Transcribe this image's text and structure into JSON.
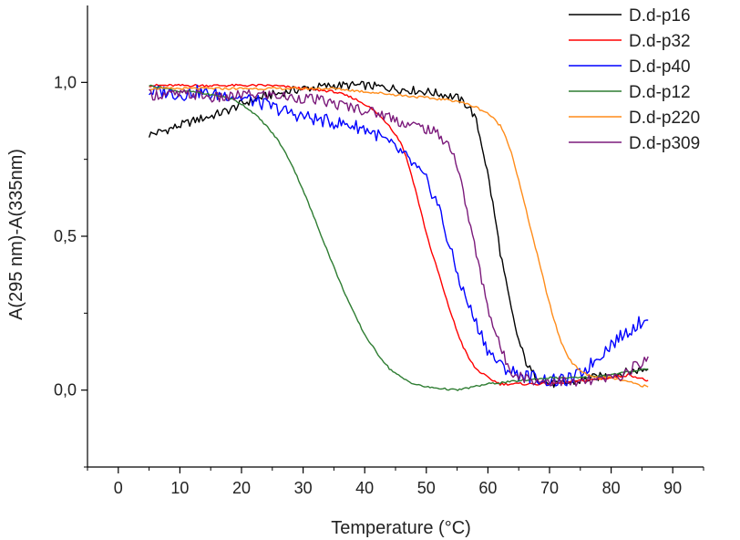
{
  "chart_data": {
    "type": "line",
    "title": "",
    "xlabel": "Temperature (°C)",
    "ylabel": "A(295 nm)-A(335nm)",
    "xlim": [
      -5,
      95
    ],
    "ylim": [
      -0.25,
      1.25
    ],
    "xticks": [
      0,
      10,
      20,
      30,
      40,
      50,
      60,
      70,
      80,
      90
    ],
    "xtick_labels": [
      "0",
      "10",
      "20",
      "30",
      "40",
      "50",
      "60",
      "70",
      "80",
      "90"
    ],
    "yticks": [
      0.0,
      0.5,
      1.0
    ],
    "ytick_labels": [
      "0,0",
      "0,5",
      "1,0"
    ],
    "grid": false,
    "legend_position": "top-right",
    "series": [
      {
        "name": "D.d-p16",
        "color": "#000000",
        "points": [
          [
            5,
            0.83
          ],
          [
            7,
            0.84
          ],
          [
            10,
            0.86
          ],
          [
            13,
            0.88
          ],
          [
            15,
            0.89
          ],
          [
            18,
            0.91
          ],
          [
            20,
            0.93
          ],
          [
            23,
            0.95
          ],
          [
            25,
            0.96
          ],
          [
            30,
            0.98
          ],
          [
            35,
            0.99
          ],
          [
            40,
            0.99
          ],
          [
            45,
            0.98
          ],
          [
            50,
            0.97
          ],
          [
            53,
            0.96
          ],
          [
            55,
            0.95
          ],
          [
            57,
            0.92
          ],
          [
            58,
            0.88
          ],
          [
            59,
            0.8
          ],
          [
            60,
            0.7
          ],
          [
            61,
            0.58
          ],
          [
            62,
            0.45
          ],
          [
            63,
            0.34
          ],
          [
            64,
            0.24
          ],
          [
            65,
            0.16
          ],
          [
            66,
            0.1
          ],
          [
            67,
            0.06
          ],
          [
            68,
            0.04
          ],
          [
            70,
            0.02
          ],
          [
            72,
            0.02
          ],
          [
            75,
            0.03
          ],
          [
            77,
            0.04
          ],
          [
            80,
            0.05
          ],
          [
            83,
            0.06
          ],
          [
            86,
            0.07
          ]
        ]
      },
      {
        "name": "D.d-p32",
        "color": "#ff0000",
        "points": [
          [
            5,
            0.99
          ],
          [
            10,
            0.99
          ],
          [
            15,
            0.99
          ],
          [
            20,
            0.99
          ],
          [
            25,
            0.99
          ],
          [
            30,
            0.98
          ],
          [
            35,
            0.97
          ],
          [
            38,
            0.95
          ],
          [
            40,
            0.93
          ],
          [
            42,
            0.9
          ],
          [
            44,
            0.86
          ],
          [
            46,
            0.8
          ],
          [
            47,
            0.74
          ],
          [
            48,
            0.67
          ],
          [
            49,
            0.59
          ],
          [
            50,
            0.51
          ],
          [
            51,
            0.44
          ],
          [
            52,
            0.38
          ],
          [
            53,
            0.31
          ],
          [
            54,
            0.25
          ],
          [
            55,
            0.19
          ],
          [
            56,
            0.14
          ],
          [
            57,
            0.1
          ],
          [
            58,
            0.07
          ],
          [
            60,
            0.04
          ],
          [
            62,
            0.02
          ],
          [
            65,
            0.02
          ],
          [
            70,
            0.02
          ],
          [
            75,
            0.03
          ],
          [
            80,
            0.04
          ],
          [
            83,
            0.05
          ],
          [
            86,
            0.03
          ]
        ]
      },
      {
        "name": "D.d-p40",
        "color": "#0000ff",
        "points": [
          [
            5,
            0.97
          ],
          [
            8,
            0.97
          ],
          [
            10,
            0.96
          ],
          [
            13,
            0.97
          ],
          [
            15,
            0.96
          ],
          [
            18,
            0.96
          ],
          [
            20,
            0.95
          ],
          [
            22,
            0.94
          ],
          [
            25,
            0.92
          ],
          [
            28,
            0.9
          ],
          [
            30,
            0.89
          ],
          [
            32,
            0.88
          ],
          [
            35,
            0.87
          ],
          [
            38,
            0.86
          ],
          [
            40,
            0.85
          ],
          [
            42,
            0.83
          ],
          [
            44,
            0.8
          ],
          [
            46,
            0.77
          ],
          [
            48,
            0.73
          ],
          [
            50,
            0.68
          ],
          [
            52,
            0.6
          ],
          [
            53,
            0.52
          ],
          [
            54,
            0.45
          ],
          [
            55,
            0.38
          ],
          [
            56,
            0.32
          ],
          [
            57,
            0.27
          ],
          [
            58,
            0.22
          ],
          [
            59,
            0.18
          ],
          [
            60,
            0.13
          ],
          [
            62,
            0.08
          ],
          [
            65,
            0.05
          ],
          [
            68,
            0.04
          ],
          [
            70,
            0.03
          ],
          [
            72,
            0.03
          ],
          [
            74,
            0.04
          ],
          [
            76,
            0.07
          ],
          [
            78,
            0.11
          ],
          [
            80,
            0.15
          ],
          [
            82,
            0.18
          ],
          [
            84,
            0.21
          ],
          [
            86,
            0.24
          ]
        ]
      },
      {
        "name": "D.d-p12",
        "color": "#2e7d32",
        "points": [
          [
            5,
            0.99
          ],
          [
            8,
            0.98
          ],
          [
            10,
            0.97
          ],
          [
            12,
            0.97
          ],
          [
            15,
            0.96
          ],
          [
            18,
            0.95
          ],
          [
            20,
            0.93
          ],
          [
            22,
            0.9
          ],
          [
            24,
            0.86
          ],
          [
            26,
            0.81
          ],
          [
            28,
            0.74
          ],
          [
            30,
            0.65
          ],
          [
            32,
            0.55
          ],
          [
            34,
            0.45
          ],
          [
            36,
            0.35
          ],
          [
            38,
            0.26
          ],
          [
            40,
            0.18
          ],
          [
            42,
            0.12
          ],
          [
            44,
            0.07
          ],
          [
            46,
            0.04
          ],
          [
            48,
            0.02
          ],
          [
            50,
            0.01
          ],
          [
            55,
            0.0
          ],
          [
            60,
            0.02
          ],
          [
            65,
            0.03
          ],
          [
            70,
            0.04
          ],
          [
            75,
            0.04
          ],
          [
            80,
            0.05
          ],
          [
            86,
            0.07
          ]
        ]
      },
      {
        "name": "D.d-p220",
        "color": "#ff8c1a",
        "points": [
          [
            5,
            0.98
          ],
          [
            10,
            0.98
          ],
          [
            15,
            0.98
          ],
          [
            20,
            0.98
          ],
          [
            25,
            0.98
          ],
          [
            30,
            0.98
          ],
          [
            35,
            0.98
          ],
          [
            40,
            0.97
          ],
          [
            45,
            0.96
          ],
          [
            50,
            0.95
          ],
          [
            55,
            0.94
          ],
          [
            58,
            0.92
          ],
          [
            60,
            0.9
          ],
          [
            62,
            0.86
          ],
          [
            63,
            0.82
          ],
          [
            64,
            0.76
          ],
          [
            65,
            0.68
          ],
          [
            66,
            0.6
          ],
          [
            67,
            0.52
          ],
          [
            68,
            0.44
          ],
          [
            69,
            0.36
          ],
          [
            70,
            0.28
          ],
          [
            71,
            0.21
          ],
          [
            72,
            0.15
          ],
          [
            73,
            0.11
          ],
          [
            74,
            0.08
          ],
          [
            76,
            0.05
          ],
          [
            78,
            0.04
          ],
          [
            80,
            0.04
          ],
          [
            82,
            0.03
          ],
          [
            84,
            0.02
          ],
          [
            86,
            0.01
          ]
        ]
      },
      {
        "name": "D.d-p309",
        "color": "#7b1a7b",
        "points": [
          [
            5,
            0.96
          ],
          [
            8,
            0.96
          ],
          [
            10,
            0.96
          ],
          [
            13,
            0.96
          ],
          [
            15,
            0.95
          ],
          [
            18,
            0.95
          ],
          [
            20,
            0.96
          ],
          [
            23,
            0.96
          ],
          [
            25,
            0.96
          ],
          [
            28,
            0.95
          ],
          [
            30,
            0.95
          ],
          [
            33,
            0.94
          ],
          [
            35,
            0.93
          ],
          [
            38,
            0.92
          ],
          [
            40,
            0.91
          ],
          [
            42,
            0.9
          ],
          [
            44,
            0.89
          ],
          [
            46,
            0.87
          ],
          [
            48,
            0.86
          ],
          [
            50,
            0.85
          ],
          [
            52,
            0.83
          ],
          [
            54,
            0.79
          ],
          [
            55,
            0.73
          ],
          [
            56,
            0.64
          ],
          [
            57,
            0.55
          ],
          [
            58,
            0.45
          ],
          [
            59,
            0.36
          ],
          [
            60,
            0.27
          ],
          [
            61,
            0.2
          ],
          [
            62,
            0.14
          ],
          [
            63,
            0.09
          ],
          [
            64,
            0.06
          ],
          [
            66,
            0.04
          ],
          [
            68,
            0.03
          ],
          [
            70,
            0.03
          ],
          [
            72,
            0.03
          ],
          [
            74,
            0.02
          ],
          [
            76,
            0.03
          ],
          [
            78,
            0.03
          ],
          [
            80,
            0.04
          ],
          [
            82,
            0.05
          ],
          [
            84,
            0.08
          ],
          [
            86,
            0.1
          ]
        ]
      }
    ]
  }
}
